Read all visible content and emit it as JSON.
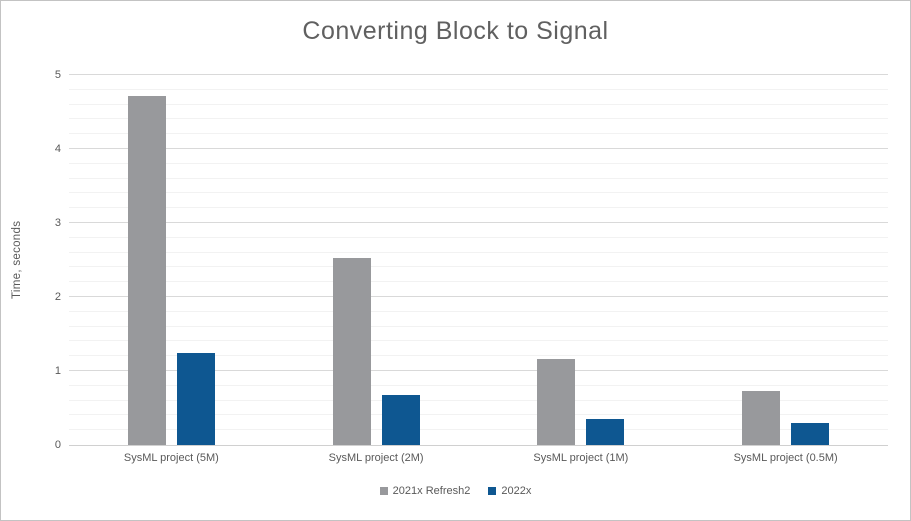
{
  "chart_data": {
    "type": "bar",
    "title": "Converting Block to Signal",
    "ylabel": "Time, seconds",
    "categories": [
      "SysML project (5M)",
      "SysML project (2M)",
      "SysML project (1M)",
      "SysML project (0.5M)"
    ],
    "series": [
      {
        "name": "2021x Refresh2",
        "color": "#98999c",
        "values": [
          4.72,
          2.53,
          1.16,
          0.73
        ]
      },
      {
        "name": "2022x",
        "color": "#0e5791",
        "values": [
          1.24,
          0.67,
          0.35,
          0.3
        ]
      }
    ],
    "ylim": [
      0,
      5
    ],
    "y_tick_labels": [
      "0",
      "1",
      "2",
      "3",
      "4",
      "5"
    ],
    "y_major_step": 1,
    "y_minor_step": 0.2,
    "grid": "major+minor horizontal",
    "legend_position": "bottom"
  },
  "colors": {
    "background": "#ffffff",
    "border": "#c3c3c3",
    "major_grid": "#d9d9d9",
    "minor_grid": "#f2f2f2",
    "axis_line": "#d0d0d0",
    "text": "#595959",
    "title_text": "#606060"
  }
}
